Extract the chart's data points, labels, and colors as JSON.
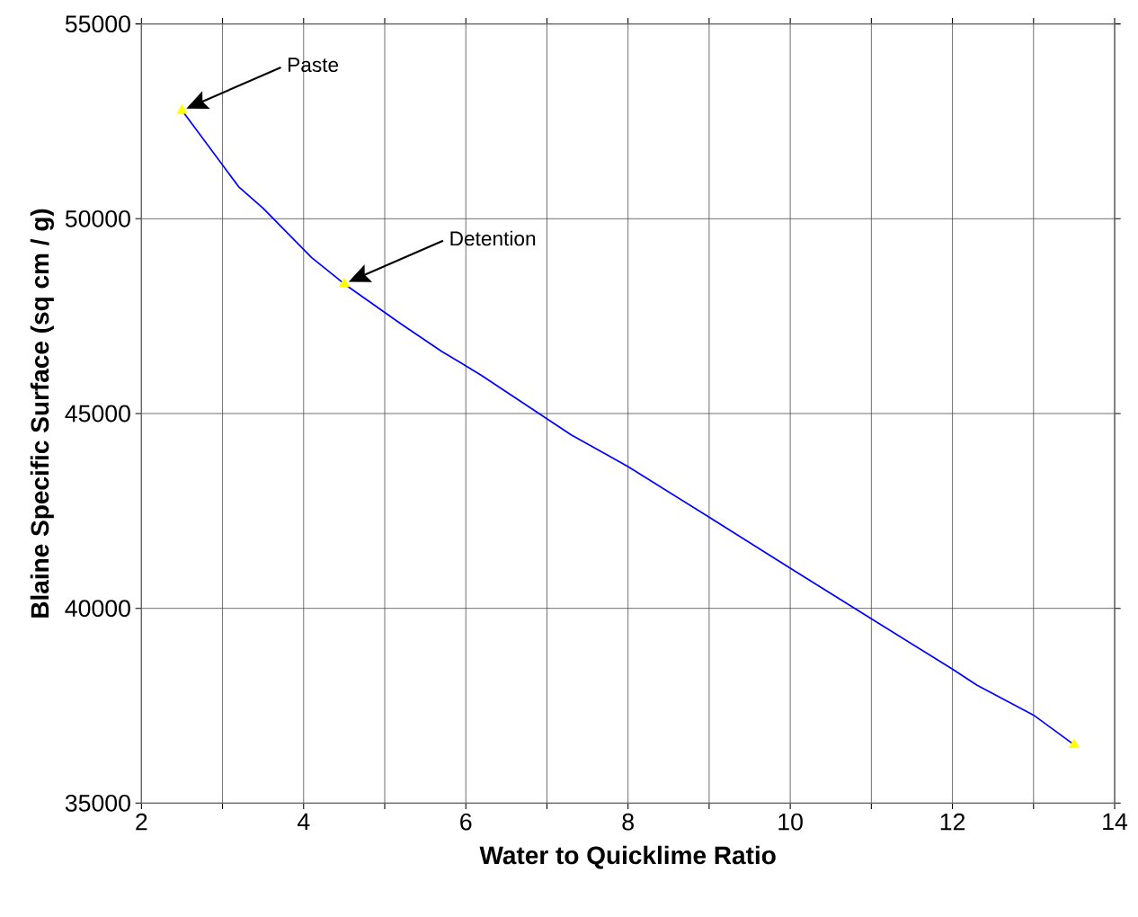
{
  "chart_data": {
    "type": "line",
    "xlabel": "Water to Quicklime Ratio",
    "ylabel": "Blaine Specific Surface (sq cm / g)",
    "xlim": [
      2,
      14
    ],
    "ylim": [
      35000,
      55000
    ],
    "xticks": [
      2,
      {
        "value": 3,
        "label": null
      },
      4,
      {
        "value": 5,
        "label": null
      },
      6,
      {
        "value": 7,
        "label": null
      },
      8,
      {
        "value": 9,
        "label": null
      },
      10,
      {
        "value": 11,
        "label": null
      },
      12,
      {
        "value": 13,
        "label": null
      },
      14
    ],
    "yticks": [
      35000,
      40000,
      45000,
      50000,
      55000
    ],
    "grid": true,
    "series": [
      {
        "color": "#0000ff",
        "marker": "none",
        "x": [
          2.5,
          3.2,
          3.5,
          4.1,
          4.5,
          5.2,
          5.7,
          6.2,
          7.3,
          8,
          9,
          10,
          11,
          12,
          12.3,
          13,
          13.5
        ],
        "values": [
          52780,
          50820,
          50270,
          49000,
          48330,
          47300,
          46600,
          45970,
          44450,
          43640,
          42340,
          41030,
          39730,
          38440,
          38030,
          37260,
          36500
        ]
      },
      {
        "type": "scatter",
        "color": "#ffff00",
        "marker": "triangle",
        "x": [
          2.5,
          4.5,
          13.5
        ],
        "values": [
          52780,
          48330,
          36500
        ]
      }
    ],
    "annotations": [
      "Paste",
      "Detention"
    ]
  }
}
